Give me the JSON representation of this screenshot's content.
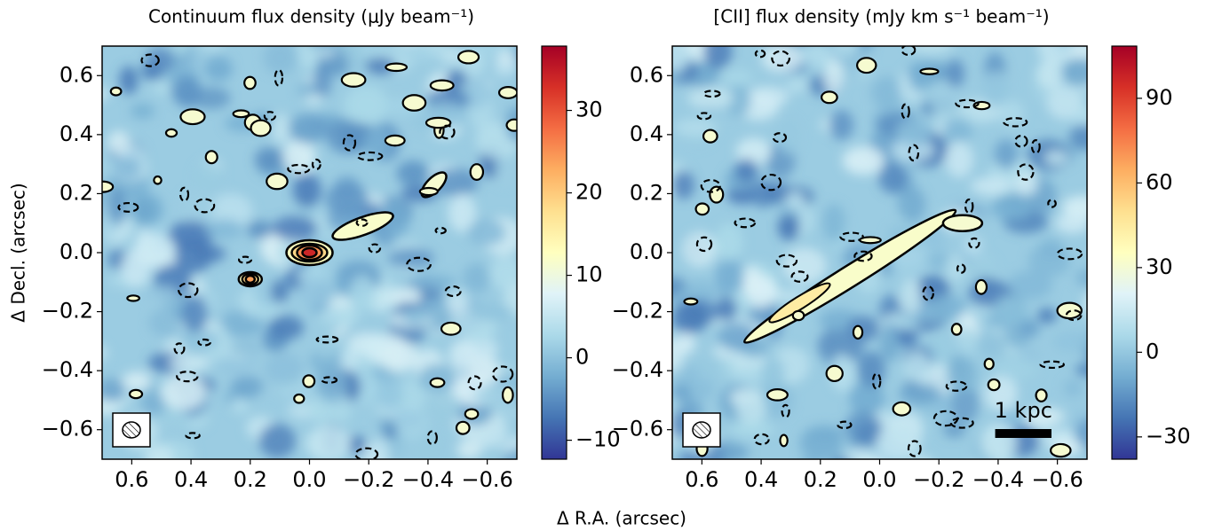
{
  "chart_data": [
    {
      "type": "heatmap",
      "title": "Continuum flux density (μJy beam⁻¹)",
      "xlabel": "Δ R.A. (arcsec)",
      "ylabel": "Δ Decl. (arcsec)",
      "xlim": [
        0.7,
        -0.7
      ],
      "ylim": [
        -0.7,
        0.7
      ],
      "xticks": [
        0.6,
        0.4,
        0.2,
        {
          "value": 0,
          "label": "0.0"
        },
        {
          "value": -0.2,
          "label": "−0.2"
        },
        {
          "value": -0.4,
          "label": "−0.4"
        },
        {
          "value": -0.6,
          "label": "−0.6"
        }
      ],
      "yticks": [
        {
          "value": -0.6,
          "label": "−0.6"
        },
        {
          "value": -0.4,
          "label": "−0.4"
        },
        {
          "value": -0.2,
          "label": "−0.2"
        },
        {
          "value": 0,
          "label": "0.0"
        },
        0.2,
        0.4,
        0.6
      ],
      "colorbar_lim": [
        -12.3,
        37.8
      ],
      "colorbar_ticks": [
        {
          "value": -10,
          "label": "−10"
        },
        0,
        10,
        20,
        30
      ],
      "colormap": "RdYlBu_r"
    },
    {
      "type": "heatmap",
      "title": "[CII] flux density (mJy km s⁻¹ beam⁻¹)",
      "annotation": "1 kpc",
      "xlim": [
        0.7,
        -0.7
      ],
      "ylim": [
        -0.7,
        0.7
      ],
      "xticks": [
        0.6,
        0.4,
        0.2,
        {
          "value": 0,
          "label": "0.0"
        },
        {
          "value": -0.2,
          "label": "−0.2"
        },
        {
          "value": -0.4,
          "label": "−0.4"
        },
        {
          "value": -0.6,
          "label": "−0.6"
        }
      ],
      "yticks": [
        {
          "value": -0.6,
          "label": "−0.6"
        },
        {
          "value": -0.4,
          "label": "−0.4"
        },
        {
          "value": -0.2,
          "label": "−0.2"
        },
        {
          "value": 0,
          "label": "0.0"
        },
        0.2,
        0.4,
        0.6
      ],
      "colorbar_lim": [
        -37.9,
        108.5
      ],
      "colorbar_ticks": [
        {
          "value": -30,
          "label": "−30"
        },
        0,
        30,
        60,
        90
      ],
      "colormap": "RdYlBu_r"
    }
  ]
}
